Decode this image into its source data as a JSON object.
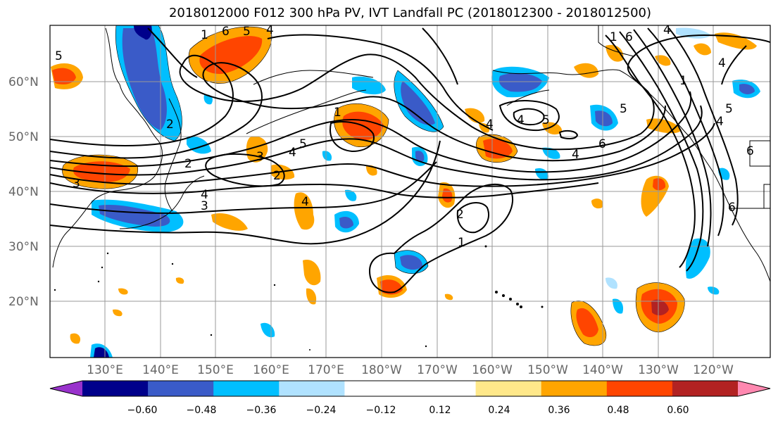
{
  "title": "2018012000 F012 300 hPa PV, IVT Landfall PC (2018012300 - 2018012500)",
  "lat_labels": [
    "60°N",
    "50°N",
    "40°N",
    "30°N",
    "20°N"
  ],
  "lon_labels": [
    "130°E",
    "140°E",
    "150°E",
    "160°E",
    "170°E",
    "180°W",
    "170°W",
    "160°W",
    "150°W",
    "140°W",
    "130°W",
    "120°W"
  ],
  "colorbar": {
    "colors": [
      "#9932CC",
      "#00008B",
      "#3A5BC8",
      "#00BFFF",
      "#B0E2FF",
      "#FFFFFF",
      "#FFFFFF",
      "#FFE88A",
      "#FFA500",
      "#FF4500",
      "#B22222",
      "#FF88B0"
    ],
    "ticks": [
      "−0.60",
      "−0.48",
      "−0.36",
      "−0.24",
      "−0.12",
      "0.12",
      "0.24",
      "0.36",
      "0.48",
      "0.60"
    ]
  },
  "contour_labels": [
    "5",
    "1",
    "6",
    "5",
    "4",
    "1",
    "6",
    "4",
    "1",
    "5",
    "4",
    "1",
    "2",
    "5",
    "4",
    "4",
    "5",
    "6",
    "4",
    "3",
    "4",
    "2",
    "2",
    "3",
    "4",
    "3",
    "4",
    "4",
    "5",
    "6",
    "2",
    "1",
    "6"
  ]
}
